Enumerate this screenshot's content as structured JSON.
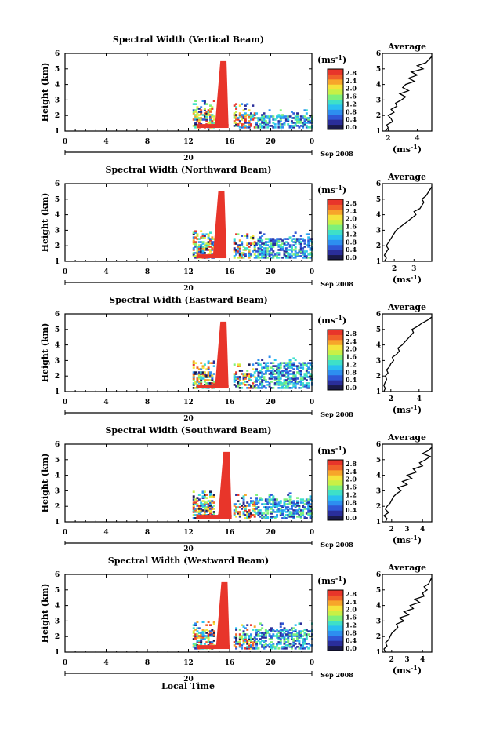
{
  "figure": {
    "xlabel": "Local Time",
    "date_label": "Sep 2008",
    "date_day": "20",
    "avg_title": "Average",
    "unit_text": "(ms",
    "unit_exp": "-1",
    "unit_close": ")",
    "ylabel": "Height (km)"
  },
  "chart_data": [
    {
      "type": "heatmap",
      "title": "Spectral Width (Vertical Beam)",
      "ylabel": "Height (km)",
      "xlabel": "",
      "xlim": [
        0,
        24
      ],
      "xticks": [
        "0",
        "4",
        "8",
        "12",
        "16",
        "20",
        "0"
      ],
      "ylim": [
        1,
        6
      ],
      "yticks": [
        "1",
        "2",
        "3",
        "4",
        "5",
        "6"
      ],
      "colorbar": {
        "label": "(ms-1)",
        "ticks": [
          "0.0",
          "0.4",
          "0.8",
          "1.2",
          "1.6",
          "2.0",
          "2.4",
          "2.8"
        ]
      },
      "average": {
        "title": "Average",
        "xlabel": "(ms-1)",
        "xticks": [
          "2",
          "4"
        ],
        "xlim": [
          1.6,
          5.0
        ],
        "height": [
          1.0,
          1.2,
          1.4,
          1.6,
          1.8,
          2.0,
          2.2,
          2.4,
          2.6,
          2.8,
          3.0,
          3.2,
          3.4,
          3.6,
          3.8,
          4.0,
          4.2,
          4.4,
          4.6,
          4.8,
          5.0,
          5.2,
          5.4,
          5.6,
          5.8
        ],
        "value": [
          1.8,
          2.0,
          1.9,
          2.3,
          2.2,
          2.0,
          2.4,
          2.2,
          2.6,
          2.5,
          2.9,
          3.2,
          2.8,
          3.4,
          3.0,
          3.2,
          3.8,
          3.4,
          4.0,
          3.6,
          4.4,
          4.0,
          4.6,
          4.8,
          5.0
        ]
      }
    },
    {
      "type": "heatmap",
      "title": "Spectral Width (Northward Beam)",
      "ylabel": "Height (km)",
      "xlabel": "",
      "xlim": [
        0,
        24
      ],
      "xticks": [
        "0",
        "4",
        "8",
        "12",
        "16",
        "20",
        "0"
      ],
      "ylim": [
        1,
        6
      ],
      "yticks": [
        "1",
        "2",
        "3",
        "4",
        "5",
        "6"
      ],
      "colorbar": {
        "label": "(ms-1)",
        "ticks": [
          "0.0",
          "0.4",
          "0.8",
          "1.2",
          "1.6",
          "2.0",
          "2.4",
          "2.8"
        ]
      },
      "average": {
        "title": "Average",
        "xlabel": "(ms-1)",
        "xticks": [
          "2",
          "3"
        ],
        "xlim": [
          1.4,
          3.9
        ],
        "height": [
          1.0,
          1.2,
          1.4,
          1.6,
          1.8,
          2.0,
          2.2,
          2.4,
          2.6,
          2.8,
          3.0,
          3.2,
          3.4,
          3.6,
          3.8,
          4.0,
          4.2,
          4.4,
          4.6,
          4.8,
          5.0,
          5.2,
          5.4,
          5.6,
          5.8
        ],
        "value": [
          1.5,
          1.6,
          1.5,
          1.6,
          1.7,
          1.6,
          1.7,
          1.8,
          1.9,
          2.0,
          2.1,
          2.3,
          2.5,
          2.7,
          2.9,
          3.1,
          3.0,
          3.3,
          3.4,
          3.5,
          3.4,
          3.6,
          3.7,
          3.8,
          3.9
        ]
      }
    },
    {
      "type": "heatmap",
      "title": "Spectral Width (Eastward Beam)",
      "ylabel": "Height (km)",
      "xlabel": "",
      "xlim": [
        0,
        24
      ],
      "xticks": [
        "0",
        "4",
        "8",
        "12",
        "16",
        "20",
        "0"
      ],
      "ylim": [
        1,
        6
      ],
      "yticks": [
        "1",
        "2",
        "3",
        "4",
        "5",
        "6"
      ],
      "colorbar": {
        "label": "(ms-1)",
        "ticks": [
          "0.0",
          "0.4",
          "0.8",
          "1.2",
          "1.6",
          "2.0",
          "2.4",
          "2.8"
        ]
      },
      "average": {
        "title": "Average",
        "xlabel": "(ms-1)",
        "xticks": [
          "2",
          "4"
        ],
        "xlim": [
          1.4,
          4.9
        ],
        "height": [
          1.0,
          1.2,
          1.4,
          1.6,
          1.8,
          2.0,
          2.2,
          2.4,
          2.6,
          2.8,
          3.0,
          3.2,
          3.4,
          3.6,
          3.8,
          4.0,
          4.2,
          4.4,
          4.6,
          4.8,
          5.0,
          5.2,
          5.4,
          5.6,
          5.8
        ],
        "value": [
          1.5,
          1.6,
          1.5,
          1.6,
          1.7,
          1.6,
          1.8,
          1.7,
          1.9,
          2.0,
          2.2,
          2.1,
          2.4,
          2.6,
          2.5,
          2.8,
          3.0,
          3.2,
          3.4,
          3.6,
          3.5,
          3.9,
          4.2,
          4.6,
          4.9
        ]
      }
    },
    {
      "type": "heatmap",
      "title": "Spectral Width (Southward Beam)",
      "ylabel": "Height (km)",
      "xlabel": "",
      "xlim": [
        0,
        24
      ],
      "xticks": [
        "0",
        "4",
        "8",
        "12",
        "16",
        "20",
        "0"
      ],
      "ylim": [
        1,
        6
      ],
      "yticks": [
        "1",
        "2",
        "3",
        "4",
        "5",
        "6"
      ],
      "colorbar": {
        "label": "(ms-1)",
        "ticks": [
          "0.0",
          "0.4",
          "0.8",
          "1.2",
          "1.6",
          "2.0",
          "2.4",
          "2.8"
        ]
      },
      "average": {
        "title": "Average",
        "xlabel": "(ms-1)",
        "xticks": [
          "2",
          "3",
          "4"
        ],
        "xlim": [
          1.4,
          4.6
        ],
        "height": [
          1.0,
          1.2,
          1.4,
          1.6,
          1.8,
          2.0,
          2.2,
          2.4,
          2.6,
          2.8,
          3.0,
          3.2,
          3.4,
          3.6,
          3.8,
          4.0,
          4.2,
          4.4,
          4.6,
          4.8,
          5.0,
          5.2,
          5.4,
          5.6,
          5.8
        ],
        "value": [
          1.6,
          1.7,
          1.5,
          1.8,
          1.6,
          1.7,
          1.9,
          2.0,
          2.1,
          2.3,
          2.6,
          2.4,
          3.0,
          2.7,
          3.3,
          3.0,
          3.6,
          3.4,
          4.0,
          3.8,
          4.2,
          4.5,
          4.0,
          4.4,
          4.6
        ]
      }
    },
    {
      "type": "heatmap",
      "title": "Spectral Width (Westward Beam)",
      "ylabel": "Height (km)",
      "xlabel": "Local Time",
      "xlim": [
        0,
        24
      ],
      "xticks": [
        "0",
        "4",
        "8",
        "12",
        "16",
        "20",
        "0"
      ],
      "ylim": [
        1,
        6
      ],
      "yticks": [
        "1",
        "2",
        "3",
        "4",
        "5",
        "6"
      ],
      "colorbar": {
        "label": "(ms-1)",
        "ticks": [
          "0.0",
          "0.4",
          "0.8",
          "1.2",
          "1.6",
          "2.0",
          "2.4",
          "2.8"
        ]
      },
      "average": {
        "title": "Average",
        "xlabel": "(ms-1)",
        "xticks": [
          "2",
          "3",
          "4"
        ],
        "xlim": [
          1.4,
          4.6
        ],
        "height": [
          1.0,
          1.2,
          1.4,
          1.6,
          1.8,
          2.0,
          2.2,
          2.4,
          2.6,
          2.8,
          3.0,
          3.2,
          3.4,
          3.6,
          3.8,
          4.0,
          4.2,
          4.4,
          4.6,
          4.8,
          5.0,
          5.2,
          5.4,
          5.6,
          5.8
        ],
        "value": [
          1.6,
          1.5,
          1.7,
          1.6,
          1.8,
          1.9,
          2.0,
          2.2,
          2.4,
          2.3,
          2.8,
          2.5,
          3.1,
          2.8,
          3.4,
          3.2,
          3.8,
          3.5,
          4.1,
          4.0,
          4.3,
          4.1,
          4.4,
          4.5,
          4.6
        ]
      }
    }
  ]
}
